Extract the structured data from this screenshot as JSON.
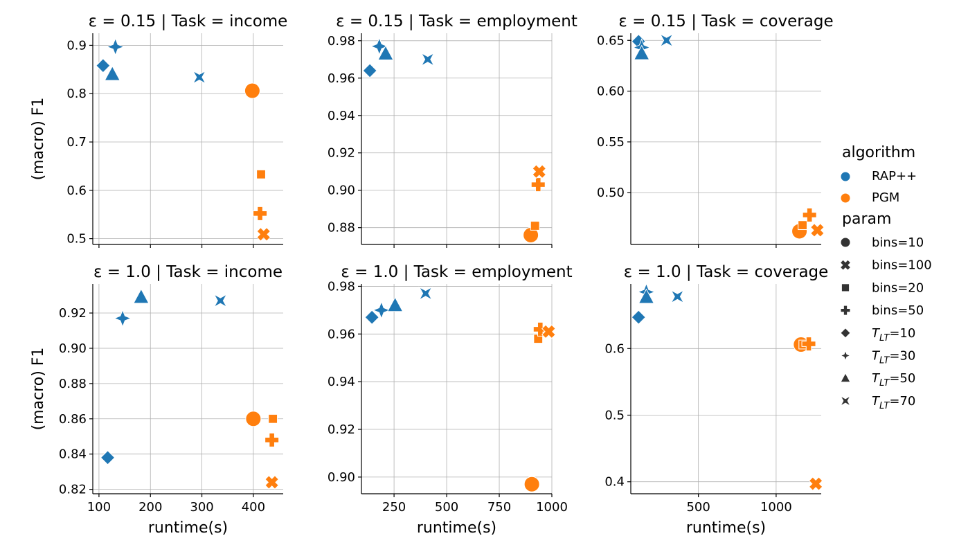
{
  "figure": {
    "legend": {
      "hue_title": "algorithm",
      "hue_entries": [
        {
          "label": "RAP++",
          "color": "#1f77b4"
        },
        {
          "label": "PGM",
          "color": "#ff7f0e"
        }
      ],
      "style_title": "param",
      "style_entries": [
        {
          "label": "bins=10",
          "marker": "circle"
        },
        {
          "label": "bins=100",
          "marker": "x"
        },
        {
          "label": "bins=20",
          "marker": "square"
        },
        {
          "label": "bins=50",
          "marker": "plus"
        },
        {
          "label": "T_LT=10",
          "marker": "diamond"
        },
        {
          "label": "T_LT=30",
          "marker": "star4"
        },
        {
          "label": "T_LT=50",
          "marker": "triangle"
        },
        {
          "label": "T_LT=70",
          "marker": "hourglass"
        }
      ]
    }
  },
  "chart_data": [
    {
      "type": "scatter",
      "title": "ε = 0.15 | Task = income",
      "xlabel": "",
      "ylabel": "(macro) F1",
      "xlim": [
        88,
        458
      ],
      "ylim": [
        0.488,
        0.925
      ],
      "xticks": [
        100,
        200,
        300,
        400
      ],
      "xtick_labels": [
        "",
        "",
        "",
        ""
      ],
      "yticks": [
        0.5,
        0.6,
        0.7,
        0.8,
        0.9
      ],
      "ytick_labels": [
        "0.5",
        "0.6",
        "0.7",
        "0.8",
        "0.9"
      ],
      "grid": true,
      "points": [
        {
          "algorithm": "RAP++",
          "param": "T_LT=10",
          "x": 108,
          "y": 0.858
        },
        {
          "algorithm": "RAP++",
          "param": "T_LT=30",
          "x": 132,
          "y": 0.897
        },
        {
          "algorithm": "RAP++",
          "param": "T_LT=50",
          "x": 126,
          "y": 0.84
        },
        {
          "algorithm": "RAP++",
          "param": "T_LT=70",
          "x": 295,
          "y": 0.834
        },
        {
          "algorithm": "PGM",
          "param": "bins=10",
          "x": 398,
          "y": 0.806
        },
        {
          "algorithm": "PGM",
          "param": "bins=20",
          "x": 415,
          "y": 0.633
        },
        {
          "algorithm": "PGM",
          "param": "bins=50",
          "x": 413,
          "y": 0.552
        },
        {
          "algorithm": "PGM",
          "param": "bins=100",
          "x": 420,
          "y": 0.509
        }
      ]
    },
    {
      "type": "scatter",
      "title": "ε = 0.15 | Task = employment",
      "xlabel": "",
      "ylabel": "",
      "xlim": [
        95,
        1000
      ],
      "ylim": [
        0.871,
        0.984
      ],
      "xticks": [
        250,
        500,
        750,
        1000
      ],
      "xtick_labels": [
        "",
        "",
        "",
        ""
      ],
      "yticks": [
        0.88,
        0.9,
        0.92,
        0.94,
        0.96,
        0.98
      ],
      "ytick_labels": [
        "0.88",
        "0.90",
        "0.92",
        "0.94",
        "0.96",
        "0.98"
      ],
      "grid": true,
      "points": [
        {
          "algorithm": "RAP++",
          "param": "T_LT=10",
          "x": 135,
          "y": 0.964
        },
        {
          "algorithm": "RAP++",
          "param": "T_LT=30",
          "x": 180,
          "y": 0.977
        },
        {
          "algorithm": "RAP++",
          "param": "T_LT=50",
          "x": 210,
          "y": 0.973
        },
        {
          "algorithm": "RAP++",
          "param": "T_LT=70",
          "x": 410,
          "y": 0.97
        },
        {
          "algorithm": "PGM",
          "param": "bins=10",
          "x": 900,
          "y": 0.876
        },
        {
          "algorithm": "PGM",
          "param": "bins=20",
          "x": 920,
          "y": 0.881
        },
        {
          "algorithm": "PGM",
          "param": "bins=50",
          "x": 935,
          "y": 0.903
        },
        {
          "algorithm": "PGM",
          "param": "bins=100",
          "x": 940,
          "y": 0.91
        }
      ]
    },
    {
      "type": "scatter",
      "title": "ε = 0.15 | Task = coverage",
      "xlabel": "",
      "ylabel": "",
      "xlim": [
        65,
        1290
      ],
      "ylim": [
        0.449,
        0.657
      ],
      "xticks": [
        500,
        1000
      ],
      "xtick_labels": [
        "",
        ""
      ],
      "yticks": [
        0.5,
        0.55,
        0.6,
        0.65
      ],
      "ytick_labels": [
        "0.50",
        "0.55",
        "0.60",
        "0.65"
      ],
      "grid": true,
      "points": [
        {
          "algorithm": "RAP++",
          "param": "T_LT=10",
          "x": 115,
          "y": 0.649
        },
        {
          "algorithm": "RAP++",
          "param": "T_LT=30",
          "x": 135,
          "y": 0.643
        },
        {
          "algorithm": "RAP++",
          "param": "T_LT=50",
          "x": 135,
          "y": 0.637
        },
        {
          "algorithm": "RAP++",
          "param": "T_LT=70",
          "x": 295,
          "y": 0.65
        },
        {
          "algorithm": "PGM",
          "param": "bins=10",
          "x": 1150,
          "y": 0.462
        },
        {
          "algorithm": "PGM",
          "param": "bins=20",
          "x": 1170,
          "y": 0.468
        },
        {
          "algorithm": "PGM",
          "param": "bins=50",
          "x": 1215,
          "y": 0.478
        },
        {
          "algorithm": "PGM",
          "param": "bins=100",
          "x": 1265,
          "y": 0.463
        }
      ]
    },
    {
      "type": "scatter",
      "title": "ε = 1.0 | Task = income",
      "xlabel": "runtime(s)",
      "ylabel": "(macro) F1",
      "xlim": [
        88,
        458
      ],
      "ylim": [
        0.8175,
        0.9365
      ],
      "xticks": [
        100,
        200,
        300,
        400
      ],
      "xtick_labels": [
        "100",
        "200",
        "300",
        "400"
      ],
      "yticks": [
        0.82,
        0.84,
        0.86,
        0.88,
        0.9,
        0.92
      ],
      "ytick_labels": [
        "0.82",
        "0.84",
        "0.86",
        "0.88",
        "0.90",
        "0.92"
      ],
      "grid": true,
      "points": [
        {
          "algorithm": "RAP++",
          "param": "T_LT=10",
          "x": 117,
          "y": 0.838
        },
        {
          "algorithm": "RAP++",
          "param": "T_LT=30",
          "x": 146,
          "y": 0.917
        },
        {
          "algorithm": "RAP++",
          "param": "T_LT=50",
          "x": 182,
          "y": 0.929
        },
        {
          "algorithm": "RAP++",
          "param": "T_LT=70",
          "x": 336,
          "y": 0.927
        },
        {
          "algorithm": "PGM",
          "param": "bins=10",
          "x": 400,
          "y": 0.86
        },
        {
          "algorithm": "PGM",
          "param": "bins=20",
          "x": 438,
          "y": 0.86
        },
        {
          "algorithm": "PGM",
          "param": "bins=50",
          "x": 436,
          "y": 0.848
        },
        {
          "algorithm": "PGM",
          "param": "bins=100",
          "x": 436,
          "y": 0.824
        }
      ]
    },
    {
      "type": "scatter",
      "title": "ε = 1.0 | Task = employment",
      "xlabel": "runtime(s)",
      "ylabel": "",
      "xlim": [
        95,
        1000
      ],
      "ylim": [
        0.893,
        0.981
      ],
      "xticks": [
        250,
        500,
        750,
        1000
      ],
      "xtick_labels": [
        "250",
        "500",
        "750",
        "1000"
      ],
      "yticks": [
        0.9,
        0.92,
        0.94,
        0.96,
        0.98
      ],
      "ytick_labels": [
        "0.90",
        "0.92",
        "0.94",
        "0.96",
        "0.98"
      ],
      "grid": true,
      "points": [
        {
          "algorithm": "RAP++",
          "param": "T_LT=10",
          "x": 145,
          "y": 0.967
        },
        {
          "algorithm": "RAP++",
          "param": "T_LT=30",
          "x": 190,
          "y": 0.97
        },
        {
          "algorithm": "RAP++",
          "param": "T_LT=50",
          "x": 255,
          "y": 0.972
        },
        {
          "algorithm": "RAP++",
          "param": "T_LT=70",
          "x": 400,
          "y": 0.977
        },
        {
          "algorithm": "PGM",
          "param": "bins=10",
          "x": 905,
          "y": 0.897
        },
        {
          "algorithm": "PGM",
          "param": "bins=20",
          "x": 935,
          "y": 0.958
        },
        {
          "algorithm": "PGM",
          "param": "bins=50",
          "x": 945,
          "y": 0.962
        },
        {
          "algorithm": "PGM",
          "param": "bins=100",
          "x": 985,
          "y": 0.961
        }
      ]
    },
    {
      "type": "scatter",
      "title": "ε = 1.0 | Task = coverage",
      "xlabel": "runtime(s)",
      "ylabel": "",
      "xlim": [
        65,
        1290
      ],
      "ylim": [
        0.382,
        0.697
      ],
      "xticks": [
        500,
        1000
      ],
      "xtick_labels": [
        "500",
        "1000"
      ],
      "yticks": [
        0.4,
        0.5,
        0.6
      ],
      "ytick_labels": [
        "0.4",
        "0.5",
        "0.6"
      ],
      "grid": true,
      "points": [
        {
          "algorithm": "RAP++",
          "param": "T_LT=10",
          "x": 115,
          "y": 0.647
        },
        {
          "algorithm": "RAP++",
          "param": "T_LT=30",
          "x": 165,
          "y": 0.685
        },
        {
          "algorithm": "RAP++",
          "param": "T_LT=50",
          "x": 165,
          "y": 0.677
        },
        {
          "algorithm": "RAP++",
          "param": "T_LT=70",
          "x": 365,
          "y": 0.678
        },
        {
          "algorithm": "PGM",
          "param": "bins=10",
          "x": 1160,
          "y": 0.606
        },
        {
          "algorithm": "PGM",
          "param": "bins=20",
          "x": 1175,
          "y": 0.606
        },
        {
          "algorithm": "PGM",
          "param": "bins=50",
          "x": 1210,
          "y": 0.607
        },
        {
          "algorithm": "PGM",
          "param": "bins=100",
          "x": 1255,
          "y": 0.397
        }
      ]
    }
  ]
}
